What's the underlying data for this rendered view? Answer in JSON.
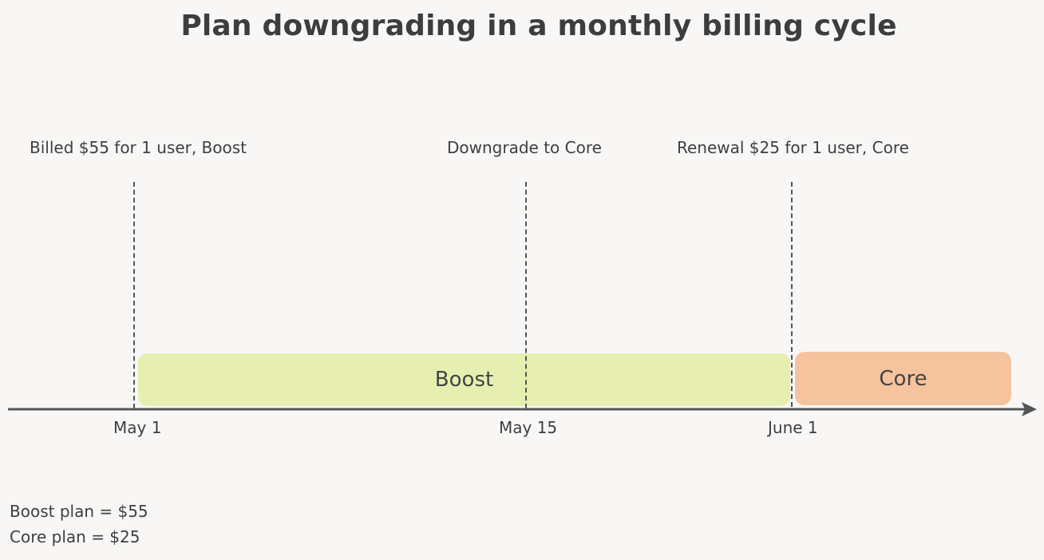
{
  "title": "Plan downgrading in a monthly billing cycle",
  "events": [
    {
      "label": "Billed $55 for 1 user, Boost"
    },
    {
      "label": "Downgrade to Core"
    },
    {
      "label": "Renewal $25 for 1 user, Core"
    }
  ],
  "dates": [
    "May 1",
    "May 15",
    "June 1"
  ],
  "plans": {
    "boost": {
      "label": "Boost",
      "color": "#e6efb0"
    },
    "core": {
      "label": "Core",
      "color": "#f5c39d"
    }
  },
  "legend": [
    "Boost plan = $55",
    "Core plan = $25"
  ],
  "colors": {
    "background": "#f8f7f5",
    "axis": "#555555",
    "text": "#3f3f3f"
  }
}
